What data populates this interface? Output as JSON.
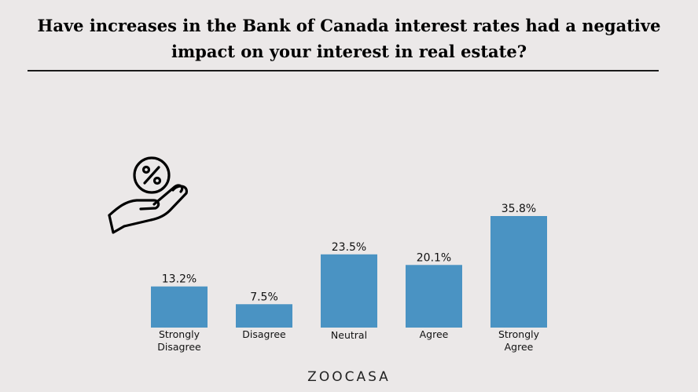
{
  "header": {
    "title": "Have increases in the Bank of Canada interest rates had a negative impact on your interest in real estate?"
  },
  "icon": {
    "name": "percent-hand-icon"
  },
  "brand": {
    "logo_text": "ZOOCASA"
  },
  "colors": {
    "bar": "#4a93c3",
    "background": "#ebe8e8",
    "text": "#111111"
  },
  "chart_data": {
    "type": "bar",
    "title": "Have increases in the Bank of Canada interest rates had a negative impact on your interest in real estate?",
    "categories": [
      [
        "Strongly",
        "Disagree"
      ],
      [
        "Disagree"
      ],
      [
        "Neutral"
      ],
      [
        "Agree"
      ],
      [
        "Strongly",
        "Agree"
      ]
    ],
    "values": [
      13.2,
      7.5,
      23.5,
      20.1,
      35.8
    ],
    "value_labels": [
      "13.2%",
      "7.5%",
      "23.5%",
      "20.1%",
      "35.8%"
    ],
    "unit": "%",
    "ylim": [
      0,
      35.8
    ],
    "grid": false,
    "legend": "none"
  }
}
